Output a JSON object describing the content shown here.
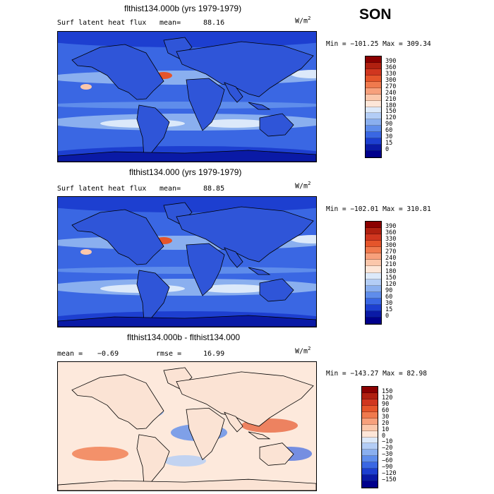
{
  "season": "SON",
  "panels": [
    {
      "title": "flthist134.000b (yrs 1979-1979)",
      "left_label": "Surf latent heat flux",
      "stat_label": "mean=",
      "stat_value": "88.16",
      "units": "W/m",
      "units_exp": "2",
      "minmax": "Min = −101.25  Max = 309.34",
      "colorbar_labels": [
        "390",
        "360",
        "330",
        "300",
        "270",
        "240",
        "210",
        "180",
        "150",
        "120",
        "90",
        "60",
        "30",
        "15",
        "0"
      ],
      "colorbar_colors": [
        "#8b0000",
        "#b02010",
        "#d0361f",
        "#e5552b",
        "#f07a4e",
        "#f7a07c",
        "#fbc7ab",
        "#fde6d8",
        "#dce9fa",
        "#b3cdf6",
        "#8aafef",
        "#5f8deb",
        "#3a67e3",
        "#1d3fd0",
        "#0a1aa6",
        "#00008c"
      ],
      "map_type": "mean"
    },
    {
      "title": "flthist134.000 (yrs 1979-1979)",
      "left_label": "Surf latent heat flux",
      "stat_label": "mean=",
      "stat_value": "88.85",
      "units": "W/m",
      "units_exp": "2",
      "minmax": "Min = −102.01  Max = 310.81",
      "colorbar_labels": [
        "390",
        "360",
        "330",
        "300",
        "270",
        "240",
        "210",
        "180",
        "150",
        "120",
        "90",
        "60",
        "30",
        "15",
        "0"
      ],
      "colorbar_colors": [
        "#8b0000",
        "#b02010",
        "#d0361f",
        "#e5552b",
        "#f07a4e",
        "#f7a07c",
        "#fbc7ab",
        "#fde6d8",
        "#dce9fa",
        "#b3cdf6",
        "#8aafef",
        "#5f8deb",
        "#3a67e3",
        "#1d3fd0",
        "#0a1aa6",
        "#00008c"
      ],
      "map_type": "mean"
    },
    {
      "title": "flthist134.000b - flthist134.000",
      "left_label": "mean =",
      "stat_label": "rmse =",
      "stat_value": "16.99",
      "left_value": "−0.69",
      "units": "W/m",
      "units_exp": "2",
      "minmax": "Min = −143.27  Max =  82.98",
      "colorbar_labels": [
        "150",
        "120",
        "90",
        "60",
        "30",
        "20",
        "10",
        "0",
        "−10",
        "−20",
        "−30",
        "−60",
        "−90",
        "−120",
        "−150"
      ],
      "colorbar_colors": [
        "#8b0000",
        "#b02010",
        "#d0361f",
        "#e5552b",
        "#f07a4e",
        "#f7a07c",
        "#fbc7ab",
        "#fde6d8",
        "#dce9fa",
        "#b3cdf6",
        "#8aafef",
        "#5f8deb",
        "#3a67e3",
        "#1d3fd0",
        "#0a1aa6",
        "#00008c"
      ],
      "map_type": "diff"
    }
  ]
}
